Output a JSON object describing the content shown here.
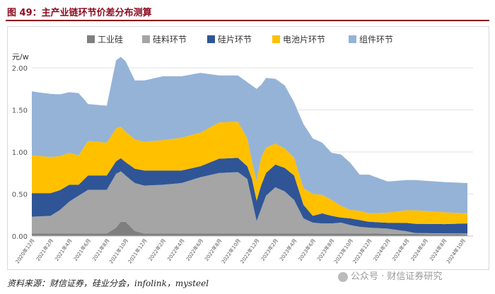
{
  "header": {
    "title": "图 49：主产业链环节价差分布测算"
  },
  "footer": {
    "source": "资料来源：财信证券，硅业分会，infolink，mysteel",
    "watermark": "公众号 · 财信证券研究"
  },
  "chart_data": {
    "type": "area",
    "stacked": true,
    "title": "",
    "ylabel": "元/w",
    "ylim": [
      0,
      2.0
    ],
    "yticks": [
      "0.00",
      "0.50",
      "1.00",
      "1.50",
      "2.00"
    ],
    "grid": true,
    "legend_position": "top",
    "colors": {
      "industrial_si": "#7f7f7f",
      "polysilicon": "#a5a5a5",
      "wafer": "#2f5597",
      "cell": "#ffc000",
      "module": "#95b3d7"
    },
    "x_tick_labels": [
      "2020年12月",
      "2021年2月",
      "2021年4月",
      "2021年6月",
      "2021年8月",
      "2021年10月",
      "2021年12月",
      "2022年2月",
      "2022年4月",
      "2022年6月",
      "2022年8月",
      "2022年10月",
      "2022年12月",
      "2023年2月",
      "2023年4月",
      "2023年6月",
      "2023年8月",
      "2023年10月",
      "2023年12月",
      "2024年2月",
      "2024年4月",
      "2024年6月",
      "2024年8月",
      "2024年10月"
    ],
    "x_tick_values": [
      0,
      2,
      4,
      6,
      8,
      10,
      12,
      14,
      16,
      18,
      20,
      22,
      24,
      26,
      28,
      30,
      32,
      34,
      36,
      38,
      40,
      42,
      44,
      46
    ],
    "series": [
      {
        "key": "industrial_si",
        "name": "工业硅",
        "points": [
          [
            0,
            0.03
          ],
          [
            8,
            0.03
          ],
          [
            9,
            0.1
          ],
          [
            9.5,
            0.17
          ],
          [
            10,
            0.17
          ],
          [
            11,
            0.06
          ],
          [
            12,
            0.03
          ],
          [
            27,
            0.03
          ],
          [
            36,
            0.03
          ],
          [
            46.5,
            0.02
          ]
        ]
      },
      {
        "key": "polysilicon",
        "name": "硅料环节",
        "points": [
          [
            0,
            0.2
          ],
          [
            2,
            0.21
          ],
          [
            3,
            0.28
          ],
          [
            4,
            0.38
          ],
          [
            5,
            0.45
          ],
          [
            6,
            0.52
          ],
          [
            8,
            0.52
          ],
          [
            9,
            0.64
          ],
          [
            9.5,
            0.6
          ],
          [
            10,
            0.55
          ],
          [
            11,
            0.57
          ],
          [
            12,
            0.57
          ],
          [
            14,
            0.58
          ],
          [
            16,
            0.6
          ],
          [
            18,
            0.67
          ],
          [
            20,
            0.72
          ],
          [
            22,
            0.73
          ],
          [
            23,
            0.65
          ],
          [
            23.5,
            0.4
          ],
          [
            24,
            0.15
          ],
          [
            24.5,
            0.3
          ],
          [
            25,
            0.45
          ],
          [
            26,
            0.55
          ],
          [
            27,
            0.5
          ],
          [
            28,
            0.4
          ],
          [
            29,
            0.18
          ],
          [
            30,
            0.13
          ],
          [
            31,
            0.12
          ],
          [
            32,
            0.12
          ],
          [
            33,
            0.13
          ],
          [
            34,
            0.1
          ],
          [
            35,
            0.08
          ],
          [
            36,
            0.07
          ],
          [
            38,
            0.06
          ],
          [
            40,
            0.03
          ],
          [
            41,
            0.01
          ],
          [
            46.5,
            0.01
          ]
        ]
      },
      {
        "key": "wafer",
        "name": "硅片环节",
        "points": [
          [
            0,
            0.28
          ],
          [
            2,
            0.27
          ],
          [
            4,
            0.2
          ],
          [
            5,
            0.13
          ],
          [
            6,
            0.17
          ],
          [
            8,
            0.17
          ],
          [
            9,
            0.15
          ],
          [
            10,
            0.16
          ],
          [
            12,
            0.18
          ],
          [
            14,
            0.17
          ],
          [
            16,
            0.15
          ],
          [
            18,
            0.13
          ],
          [
            20,
            0.17
          ],
          [
            22,
            0.17
          ],
          [
            23,
            0.15
          ],
          [
            23.5,
            0.25
          ],
          [
            24,
            0.24
          ],
          [
            24.5,
            0.28
          ],
          [
            25,
            0.27
          ],
          [
            26,
            0.27
          ],
          [
            27,
            0.28
          ],
          [
            28,
            0.29
          ],
          [
            29,
            0.16
          ],
          [
            30,
            0.08
          ],
          [
            31,
            0.12
          ],
          [
            32,
            0.09
          ],
          [
            33,
            0.06
          ],
          [
            34,
            0.08
          ],
          [
            35,
            0.08
          ],
          [
            36,
            0.07
          ],
          [
            38,
            0.07
          ],
          [
            40,
            0.1
          ],
          [
            41,
            0.11
          ],
          [
            44,
            0.11
          ],
          [
            46.5,
            0.12
          ]
        ]
      },
      {
        "key": "cell",
        "name": "电池片环节",
        "points": [
          [
            0,
            0.45
          ],
          [
            2,
            0.43
          ],
          [
            4,
            0.38
          ],
          [
            5,
            0.35
          ],
          [
            6,
            0.41
          ],
          [
            8,
            0.39
          ],
          [
            9,
            0.39
          ],
          [
            10,
            0.36
          ],
          [
            12,
            0.34
          ],
          [
            14,
            0.36
          ],
          [
            16,
            0.39
          ],
          [
            18,
            0.4
          ],
          [
            20,
            0.43
          ],
          [
            22,
            0.43
          ],
          [
            23,
            0.33
          ],
          [
            23.5,
            0.21
          ],
          [
            24,
            0.23
          ],
          [
            24.5,
            0.33
          ],
          [
            25,
            0.3
          ],
          [
            26,
            0.25
          ],
          [
            27,
            0.23
          ],
          [
            28,
            0.21
          ],
          [
            29,
            0.2
          ],
          [
            30,
            0.26
          ],
          [
            31,
            0.22
          ],
          [
            32,
            0.19
          ],
          [
            33,
            0.14
          ],
          [
            34,
            0.1
          ],
          [
            35,
            0.11
          ],
          [
            36,
            0.1
          ],
          [
            38,
            0.12
          ],
          [
            40,
            0.15
          ],
          [
            41,
            0.16
          ],
          [
            44,
            0.14
          ],
          [
            46.5,
            0.12
          ]
        ]
      },
      {
        "key": "module",
        "name": "组件环节",
        "points": [
          [
            0,
            0.76
          ],
          [
            2,
            0.75
          ],
          [
            4,
            0.72
          ],
          [
            5,
            0.74
          ],
          [
            6,
            0.44
          ],
          [
            8,
            0.44
          ],
          [
            9,
            0.81
          ],
          [
            9.5,
            0.83
          ],
          [
            10,
            0.84
          ],
          [
            11,
            0.7
          ],
          [
            12,
            0.73
          ],
          [
            14,
            0.76
          ],
          [
            16,
            0.73
          ],
          [
            18,
            0.71
          ],
          [
            20,
            0.56
          ],
          [
            22,
            0.55
          ],
          [
            23,
            0.67
          ],
          [
            23.5,
            0.9
          ],
          [
            24,
            1.1
          ],
          [
            24.5,
            0.86
          ],
          [
            25,
            0.83
          ],
          [
            26,
            0.77
          ],
          [
            27,
            0.75
          ],
          [
            28,
            0.66
          ],
          [
            29,
            0.76
          ],
          [
            30,
            0.66
          ],
          [
            31,
            0.62
          ],
          [
            32,
            0.56
          ],
          [
            33,
            0.61
          ],
          [
            34,
            0.56
          ],
          [
            35,
            0.43
          ],
          [
            36,
            0.46
          ],
          [
            38,
            0.37
          ],
          [
            40,
            0.36
          ],
          [
            41,
            0.36
          ],
          [
            44,
            0.36
          ],
          [
            46.5,
            0.36
          ]
        ]
      }
    ]
  }
}
